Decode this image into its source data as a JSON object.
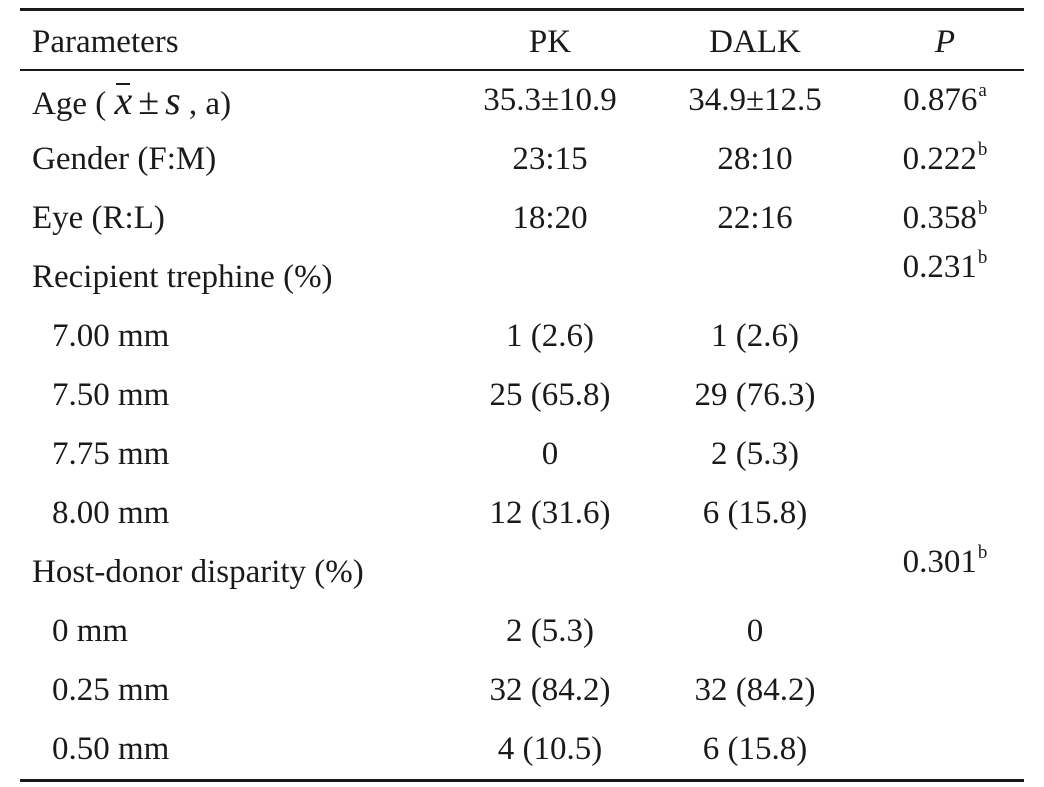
{
  "table": {
    "headers": {
      "parameters": "Parameters",
      "pk": "PK",
      "dalk": "DALK",
      "p": "P"
    },
    "age": {
      "label_open": "Age (",
      "mean_symbol": "x",
      "pm_symbol": "±",
      "sd_symbol": "s",
      "label_close": ", a)",
      "pk": "35.3±10.9",
      "dalk": "34.9±12.5",
      "p": "0.876",
      "p_note": "a"
    },
    "gender": {
      "label": "Gender (F:M)",
      "pk": "23:15",
      "dalk": "28:10",
      "p": "0.222",
      "p_note": "b"
    },
    "eye": {
      "label": "Eye (R:L)",
      "pk": "18:20",
      "dalk": "22:16",
      "p": "0.358",
      "p_note": "b"
    },
    "recipient_trephine": {
      "label": "Recipient trephine (%)",
      "p": "0.231",
      "p_note": "b",
      "rows": [
        {
          "label": "7.00 mm",
          "pk": "1 (2.6)",
          "dalk": "1 (2.6)"
        },
        {
          "label": "7.50 mm",
          "pk": "25 (65.8)",
          "dalk": "29 (76.3)"
        },
        {
          "label": "7.75 mm",
          "pk": "0",
          "dalk": "2 (5.3)"
        },
        {
          "label": "8.00 mm",
          "pk": "12 (31.6)",
          "dalk": "6 (15.8)"
        }
      ]
    },
    "host_donor": {
      "label": "Host-donor disparity (%)",
      "p": "0.301",
      "p_note": "b",
      "rows": [
        {
          "label": "0 mm",
          "pk": "2 (5.3)",
          "dalk": "0"
        },
        {
          "label": "0.25 mm",
          "pk": "32 (84.2)",
          "dalk": "32 (84.2)"
        },
        {
          "label": "0.50 mm",
          "pk": "4 (10.5)",
          "dalk": "6 (15.8)"
        }
      ]
    }
  }
}
